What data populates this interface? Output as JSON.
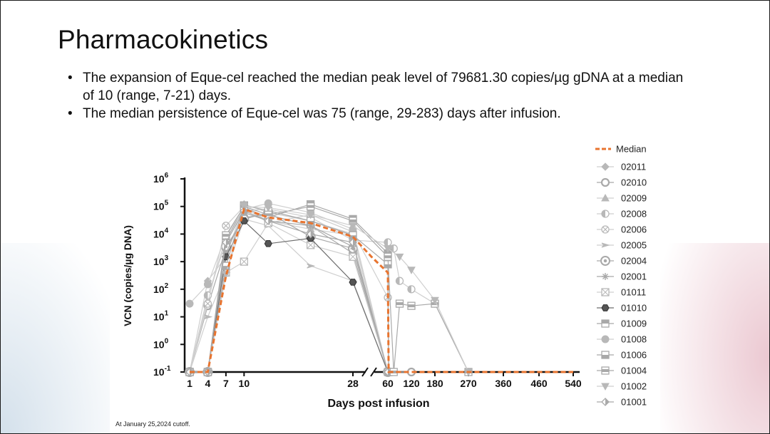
{
  "slide": {
    "title": "Pharmacokinetics",
    "bullets": [
      "The expansion of Eque-cel reached the median peak level of 79681.30 copies/µg gDNA at a median of 10 (range, 7-21) days.",
      "The median persistence of Eque-cel was 75 (range, 29-283) days after infusion."
    ],
    "footnote": "At January 25,2024 cutoff."
  },
  "colors": {
    "median": "#E8742F",
    "series_light": "#cfcfcf",
    "series_mid": "#a9a9a9",
    "series_dark": "#6e6e6e",
    "background_left": "#cfdde9",
    "background_right": "#e9c2cc"
  },
  "chart_data": {
    "type": "line",
    "xlabel": "Days post infusion",
    "ylabel": "VCN (copies/µg DNA)",
    "yscale": "log",
    "ylim": [
      0.1,
      1000000
    ],
    "y_ticks": [
      {
        "value": 0.1,
        "base": "10",
        "exp": "-1"
      },
      {
        "value": 1,
        "base": "10",
        "exp": "0"
      },
      {
        "value": 10,
        "base": "10",
        "exp": "1"
      },
      {
        "value": 100,
        "base": "10",
        "exp": "2"
      },
      {
        "value": 1000,
        "base": "10",
        "exp": "3"
      },
      {
        "value": 10000,
        "base": "10",
        "exp": "4"
      },
      {
        "value": 100000,
        "base": "10",
        "exp": "5"
      },
      {
        "value": 1000000,
        "base": "10",
        "exp": "6"
      }
    ],
    "x_axis_segments": [
      {
        "range": [
          0,
          28
        ],
        "scale": "linear",
        "ticks": [
          1,
          4,
          7,
          10,
          28
        ]
      },
      {
        "range": [
          60,
          540
        ],
        "scale": "categorical",
        "ticks": [
          60,
          120,
          180,
          270,
          360,
          460,
          540
        ]
      }
    ],
    "x_ticks": [
      "1",
      "4",
      "7",
      "10",
      "28",
      "60",
      "120",
      "180",
      "270",
      "360",
      "460",
      "540"
    ],
    "grid": false,
    "legend_position": "right",
    "legend_markers": [
      "line-dashed",
      "diamond",
      "ring",
      "triangle",
      "circle-half",
      "circle-x",
      "arrow",
      "circle-target",
      "asterisk",
      "square-x",
      "hexagon",
      "square-top",
      "circle",
      "square-bottom",
      "square-mid",
      "triangle-down",
      "diamond-half"
    ],
    "series": [
      {
        "name": "Median",
        "style": "dashed",
        "points": [
          [
            1,
            0.1
          ],
          [
            4,
            0.1
          ],
          [
            7,
            300
          ],
          [
            10,
            79681
          ],
          [
            14,
            40000
          ],
          [
            21,
            25000
          ],
          [
            28,
            8000
          ],
          [
            45,
            1500
          ],
          [
            60,
            400
          ],
          [
            62,
            0.1
          ],
          [
            90,
            0.1
          ],
          [
            120,
            0.1
          ],
          [
            180,
            0.1
          ],
          [
            270,
            0.1
          ],
          [
            360,
            0.1
          ],
          [
            460,
            0.1
          ],
          [
            540,
            0.1
          ]
        ]
      },
      {
        "name": "02011",
        "points": [
          [
            1,
            0.1
          ],
          [
            4,
            200
          ],
          [
            7,
            1500
          ],
          [
            10,
            120000
          ],
          [
            14,
            60000
          ],
          [
            21,
            30000
          ],
          [
            28,
            10000
          ],
          [
            60,
            0.1
          ],
          [
            120,
            0.1
          ]
        ]
      },
      {
        "name": "02010",
        "points": [
          [
            1,
            0.1
          ],
          [
            4,
            25
          ],
          [
            7,
            3000
          ],
          [
            10,
            40000
          ],
          [
            14,
            50000
          ],
          [
            21,
            20000
          ],
          [
            28,
            2000
          ],
          [
            60,
            0.1
          ],
          [
            120,
            0.1
          ]
        ]
      },
      {
        "name": "02009",
        "points": [
          [
            1,
            0.1
          ],
          [
            4,
            40
          ],
          [
            7,
            8000
          ],
          [
            10,
            90000
          ],
          [
            14,
            30000
          ],
          [
            21,
            15000
          ],
          [
            28,
            9000
          ],
          [
            60,
            0.1
          ]
        ]
      },
      {
        "name": "02008",
        "points": [
          [
            1,
            0.1
          ],
          [
            4,
            60
          ],
          [
            7,
            5000
          ],
          [
            10,
            70000
          ],
          [
            14,
            80000
          ],
          [
            21,
            40000
          ],
          [
            28,
            6000
          ],
          [
            60,
            5000
          ],
          [
            75,
            3000
          ],
          [
            90,
            200
          ],
          [
            120,
            100
          ],
          [
            180,
            30
          ],
          [
            270,
            0.1
          ]
        ]
      },
      {
        "name": "02006",
        "points": [
          [
            1,
            0.1
          ],
          [
            4,
            30
          ],
          [
            7,
            20000
          ],
          [
            10,
            100000
          ],
          [
            14,
            25000
          ],
          [
            21,
            50000
          ],
          [
            28,
            12000
          ],
          [
            60,
            50
          ],
          [
            62,
            0.1
          ]
        ]
      },
      {
        "name": "02005",
        "points": [
          [
            1,
            0.1
          ],
          [
            4,
            10
          ],
          [
            7,
            400
          ],
          [
            10,
            35000
          ],
          [
            14,
            20000
          ],
          [
            21,
            700
          ],
          [
            28,
            200
          ],
          [
            60,
            0.1
          ]
        ]
      },
      {
        "name": "02004",
        "points": [
          [
            1,
            0.1
          ],
          [
            4,
            0.1
          ],
          [
            7,
            3500
          ],
          [
            10,
            35000
          ],
          [
            14,
            60000
          ],
          [
            21,
            8000
          ],
          [
            28,
            3000
          ],
          [
            60,
            0.1
          ]
        ]
      },
      {
        "name": "02001",
        "points": [
          [
            1,
            0.1
          ],
          [
            4,
            0.1
          ],
          [
            7,
            2000
          ],
          [
            10,
            60000
          ],
          [
            14,
            30000
          ],
          [
            21,
            20000
          ],
          [
            28,
            3500
          ],
          [
            60,
            0.1
          ]
        ]
      },
      {
        "name": "01011",
        "points": [
          [
            1,
            0.1
          ],
          [
            4,
            0.1
          ],
          [
            7,
            400
          ],
          [
            10,
            1000
          ],
          [
            14,
            25000
          ],
          [
            21,
            4000
          ],
          [
            28,
            1500
          ],
          [
            60,
            0.1
          ]
        ]
      },
      {
        "name": "01010",
        "points": [
          [
            1,
            0.1
          ],
          [
            4,
            0.1
          ],
          [
            7,
            1500
          ],
          [
            10,
            30000
          ],
          [
            14,
            4500
          ],
          [
            21,
            7000
          ],
          [
            28,
            180
          ],
          [
            60,
            0.1
          ]
        ]
      },
      {
        "name": "01009",
        "points": [
          [
            1,
            0.1
          ],
          [
            4,
            0.1
          ],
          [
            7,
            6000
          ],
          [
            10,
            90000
          ],
          [
            14,
            40000
          ],
          [
            21,
            120000
          ],
          [
            28,
            35000
          ],
          [
            60,
            2000
          ],
          [
            62,
            0.1
          ]
        ]
      },
      {
        "name": "01008",
        "points": [
          [
            1,
            30
          ],
          [
            4,
            150
          ],
          [
            7,
            9000
          ],
          [
            10,
            80000
          ],
          [
            14,
            130000
          ],
          [
            21,
            60000
          ],
          [
            28,
            15000
          ],
          [
            60,
            0.1
          ]
        ]
      },
      {
        "name": "01006",
        "points": [
          [
            1,
            0.1
          ],
          [
            4,
            0.1
          ],
          [
            7,
            700
          ],
          [
            10,
            110000
          ],
          [
            14,
            70000
          ],
          [
            21,
            30000
          ],
          [
            28,
            9000
          ],
          [
            60,
            800
          ],
          [
            62,
            0.1
          ]
        ]
      },
      {
        "name": "01004",
        "points": [
          [
            1,
            0.1
          ],
          [
            4,
            0.1
          ],
          [
            7,
            9000
          ],
          [
            10,
            100000
          ],
          [
            14,
            50000
          ],
          [
            21,
            100000
          ],
          [
            28,
            30000
          ],
          [
            60,
            1500
          ],
          [
            75,
            0.1
          ],
          [
            90,
            30
          ],
          [
            120,
            25
          ],
          [
            180,
            30
          ],
          [
            270,
            0.1
          ]
        ]
      },
      {
        "name": "01002",
        "points": [
          [
            1,
            0.1
          ],
          [
            4,
            0.1
          ],
          [
            7,
            350
          ],
          [
            10,
            100000
          ],
          [
            14,
            90000
          ],
          [
            21,
            50000
          ],
          [
            28,
            20000
          ],
          [
            60,
            3000
          ],
          [
            90,
            1500
          ],
          [
            120,
            500
          ],
          [
            180,
            40
          ],
          [
            270,
            0.1
          ]
        ]
      },
      {
        "name": "01001",
        "points": [
          [
            1,
            0.1
          ],
          [
            4,
            0.1
          ],
          [
            7,
            5000
          ],
          [
            10,
            70000
          ],
          [
            14,
            30000
          ],
          [
            21,
            10000
          ],
          [
            28,
            5000
          ],
          [
            60,
            0.1
          ]
        ]
      }
    ]
  }
}
